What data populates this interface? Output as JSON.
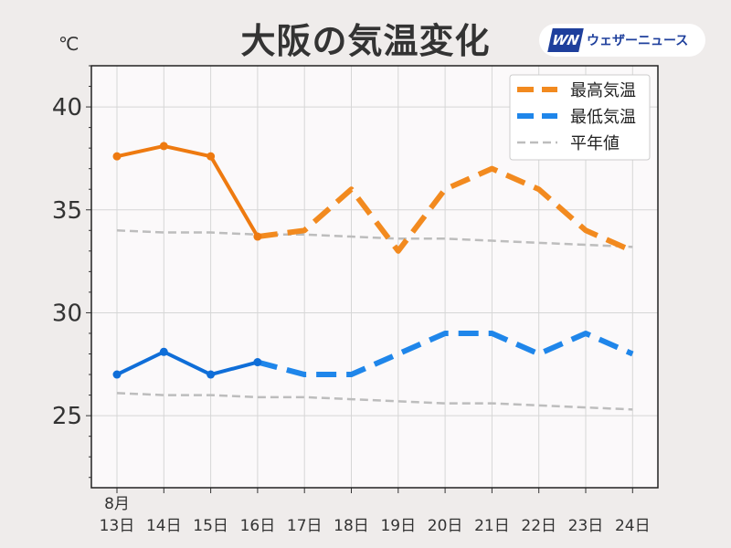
{
  "title": "大阪の気温変化",
  "unit": "℃",
  "logo": {
    "mark": "WN",
    "text": "ウェザーニュース"
  },
  "colors": {
    "high": "#ee7a10",
    "high_forecast": "#f28a1f",
    "low": "#0f6ed8",
    "low_forecast": "#1f86ea",
    "normal": "#bdbdbd",
    "plot_bg": "#fbf9fa",
    "grid": "#d6d6d6"
  },
  "chart_data": {
    "type": "line",
    "month_label": "8月",
    "categories": [
      "13日",
      "14日",
      "15日",
      "16日",
      "17日",
      "18日",
      "19日",
      "20日",
      "21日",
      "22日",
      "23日",
      "24日"
    ],
    "ylim": [
      21.5,
      42
    ],
    "yticks": [
      25,
      30,
      35,
      40
    ],
    "grid": true,
    "legend_position": "top-right",
    "observed_count": 4,
    "series": [
      {
        "name": "最高気温",
        "values": [
          37.6,
          38.1,
          37.6,
          33.7,
          34.0,
          36.0,
          33.0,
          36.0,
          37.0,
          36.0,
          34.0,
          33.0
        ]
      },
      {
        "name": "最低気温",
        "values": [
          27.0,
          28.1,
          27.0,
          27.6,
          27.0,
          27.0,
          28.0,
          29.0,
          29.0,
          28.0,
          29.0,
          28.0
        ]
      },
      {
        "name": "平年値",
        "high_values": [
          34.0,
          33.9,
          33.9,
          33.8,
          33.8,
          33.7,
          33.6,
          33.6,
          33.5,
          33.4,
          33.3,
          33.2
        ],
        "low_values": [
          26.1,
          26.0,
          26.0,
          25.9,
          25.9,
          25.8,
          25.7,
          25.6,
          25.6,
          25.5,
          25.4,
          25.3
        ]
      }
    ]
  }
}
